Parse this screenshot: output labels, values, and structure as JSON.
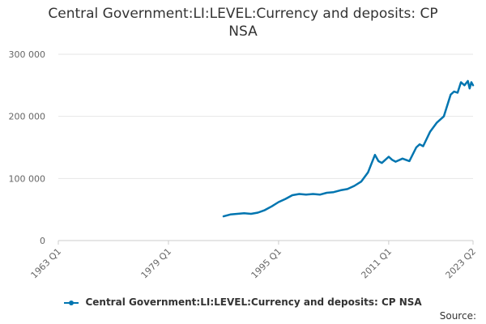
{
  "chart_data": {
    "type": "line",
    "title_line1": "Central Government:LI:LEVEL:Currency and deposits: CP",
    "title_line2": "NSA",
    "xlabel": "",
    "ylabel": "",
    "x_tick_labels": [
      "1963 Q1",
      "1979 Q1",
      "1995 Q1",
      "2011 Q1",
      "2023 Q2"
    ],
    "x_tick_years": [
      1963.0,
      1979.0,
      1995.0,
      2011.0,
      2023.25
    ],
    "xlim": [
      1963.0,
      2023.25
    ],
    "y_tick_labels": [
      "0",
      "100 000",
      "200 000",
      "300 000"
    ],
    "y_tick_values": [
      0,
      100000,
      200000,
      300000
    ],
    "ylim": [
      0,
      300000
    ],
    "grid": "horizontal",
    "legend_position": "bottom",
    "colors": {
      "series": "#0075b0",
      "grid": "#e6e6e6",
      "axis": "#cccccc"
    },
    "series": [
      {
        "name": "Central Government:LI:LEVEL:Currency and deposits: CP NSA",
        "x": [
          1987.0,
          1988.0,
          1989.0,
          1990.0,
          1991.0,
          1992.0,
          1993.0,
          1994.0,
          1995.0,
          1996.0,
          1997.0,
          1998.0,
          1999.0,
          2000.0,
          2001.0,
          2002.0,
          2003.0,
          2004.0,
          2005.0,
          2006.0,
          2007.0,
          2008.0,
          2009.0,
          2009.5,
          2010.0,
          2010.5,
          2011.0,
          2011.5,
          2012.0,
          2013.0,
          2014.0,
          2015.0,
          2015.5,
          2016.0,
          2017.0,
          2018.0,
          2019.0,
          2020.0,
          2020.5,
          2021.0,
          2021.5,
          2022.0,
          2022.5,
          2022.75,
          2023.0,
          2023.25
        ],
        "y": [
          39000,
          42000,
          43000,
          44000,
          43000,
          45000,
          49000,
          55000,
          62000,
          67000,
          73000,
          75000,
          74000,
          75000,
          74000,
          77000,
          78000,
          81000,
          83000,
          88000,
          95000,
          110000,
          138000,
          128000,
          125000,
          130000,
          135000,
          130000,
          127000,
          132000,
          128000,
          150000,
          155000,
          152000,
          175000,
          190000,
          200000,
          235000,
          240000,
          238000,
          255000,
          250000,
          257000,
          245000,
          255000,
          250000
        ]
      }
    ]
  },
  "legend": {
    "label": "Central Government:LI:LEVEL:Currency and deposits: CP NSA"
  },
  "source": {
    "label": "Source:"
  }
}
